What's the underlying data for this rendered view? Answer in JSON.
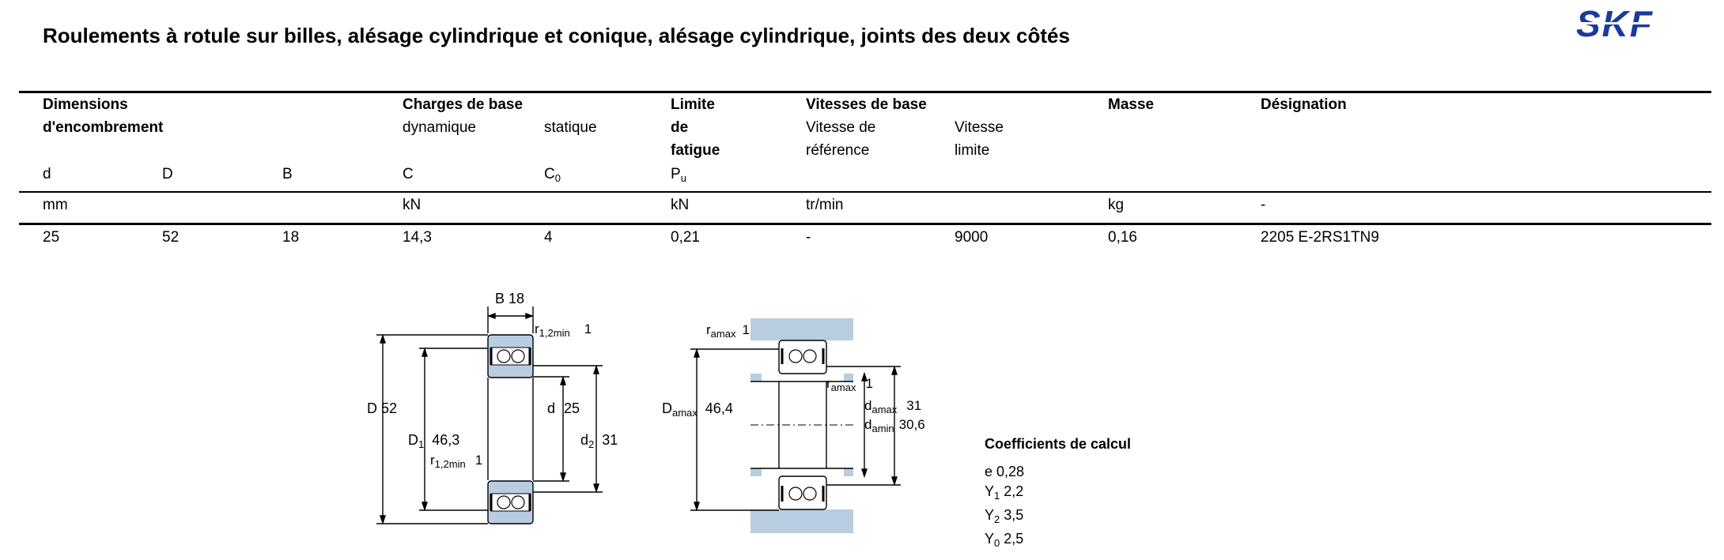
{
  "title": "Roulements à rotule sur billes, alésage cylindrique et conique, alésage cylindrique, joints des deux côtés",
  "logo_text": "SKF",
  "brand_color": "#1a3a9e",
  "table": {
    "groups": {
      "dimensions_1": "Dimensions",
      "dimensions_2": "d'encombrement",
      "charges": "Charges de base",
      "limite_1": "Limite",
      "limite_2": "de",
      "limite_3": "fatigue",
      "vitesses": "Vitesses de base",
      "masse": "Masse",
      "designation": "Désignation"
    },
    "subheaders": {
      "dynamique": "dynamique",
      "statique": "statique",
      "vref_1": "Vitesse de",
      "vref_2": "référence",
      "vlim_1": "Vitesse",
      "vlim_2": "limite"
    },
    "symbols": {
      "d": "d",
      "D": "D",
      "B": "B",
      "C": "C",
      "C0_base": "C",
      "C0_sub": "0",
      "Pu_base": "P",
      "Pu_sub": "u"
    },
    "units": {
      "dims": "mm",
      "charges": "kN",
      "limite": "kN",
      "vitesses": "tr/min",
      "masse": "kg",
      "designation": "-"
    },
    "row": {
      "d": "25",
      "D": "52",
      "B": "18",
      "C": "14,3",
      "C0": "4",
      "Pu": "0,21",
      "vref": "-",
      "vlim": "9000",
      "masse": "0,16",
      "designation": "2205 E-2RS1TN9"
    }
  },
  "drawing_left": {
    "B_label": "B",
    "B_value": "18",
    "r_top_base": "r",
    "r_top_sub": "1,2min",
    "r_top_value": "1",
    "D_label": "D",
    "D_value": "52",
    "D1_base": "D",
    "D1_sub": "1",
    "D1_value": "46,3",
    "d_label": "d",
    "d_value": "25",
    "d2_base": "d",
    "d2_sub": "2",
    "d2_value": "31",
    "r_bot_base": "r",
    "r_bot_sub": "1,2min",
    "r_bot_value": "1"
  },
  "drawing_right": {
    "ra_top_base": "r",
    "ra_top_sub": "amax",
    "ra_top_value": "1",
    "Da_base": "D",
    "Da_sub": "amax",
    "Da_value": "46,4",
    "ra_mid_base": "r",
    "ra_mid_sub": "amax",
    "ra_mid_value": "1",
    "damax_base": "d",
    "damax_sub": "amax",
    "damax_value": "31",
    "damin_base": "d",
    "damin_sub": "amin",
    "damin_value": "30,6"
  },
  "coefficients": {
    "title": "Coefficients de calcul",
    "items": [
      {
        "base": "e",
        "sub": "",
        "value": "0,28"
      },
      {
        "base": "Y",
        "sub": "1",
        "value": "2,2"
      },
      {
        "base": "Y",
        "sub": "2",
        "value": "3,5"
      },
      {
        "base": "Y",
        "sub": "0",
        "value": "2,5"
      }
    ]
  }
}
